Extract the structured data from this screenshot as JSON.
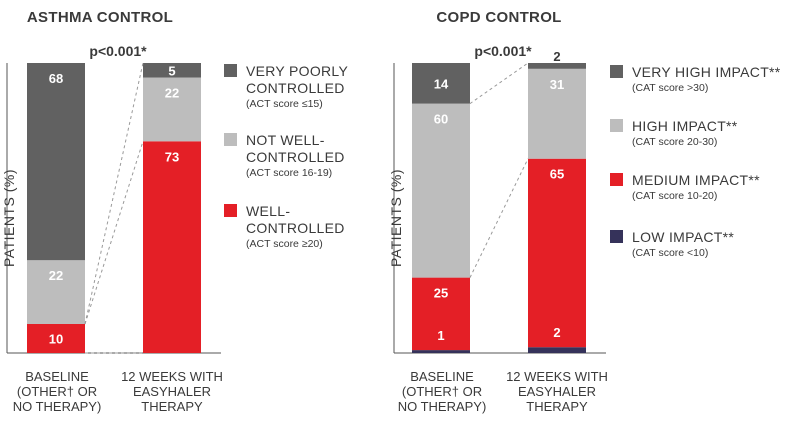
{
  "chart_data": [
    {
      "type": "bar",
      "stacked": true,
      "title": "ASTHMA CONTROL",
      "ylabel": "PATIENTS (%)",
      "annotation": "p<0.001*",
      "categories": [
        [
          "BASELINE",
          "(OTHER† OR",
          "NO THERAPY)"
        ],
        [
          "12 WEEKS WITH",
          "EASYHALER",
          "THERAPY"
        ]
      ],
      "series": [
        {
          "name": "WELL-CONTROLLED",
          "legend_lines": [
            "WELL-",
            "CONTROLLED"
          ],
          "note": "(ACT score ≥20)",
          "color": "#e41f26",
          "values": [
            10,
            73
          ]
        },
        {
          "name": "NOT WELL-CONTROLLED",
          "legend_lines": [
            "NOT WELL-",
            "CONTROLLED"
          ],
          "note": "(ACT score 16-19)",
          "color": "#bdbdbd",
          "values": [
            22,
            22
          ]
        },
        {
          "name": "VERY POORLY CONTROLLED",
          "legend_lines": [
            "VERY POORLY",
            "CONTROLLED"
          ],
          "note": "(ACT score ≤15)",
          "color": "#616161",
          "values": [
            68,
            5
          ]
        }
      ],
      "ylim": [
        0,
        100
      ]
    },
    {
      "type": "bar",
      "stacked": true,
      "title": "COPD CONTROL",
      "ylabel": "PATIENTS (%)",
      "annotation": "p<0.001*",
      "categories": [
        [
          "BASELINE",
          "(OTHER† OR",
          "NO THERAPY)"
        ],
        [
          "12 WEEKS WITH",
          "EASYHALER",
          "THERAPY"
        ]
      ],
      "series": [
        {
          "name": "LOW IMPACT**",
          "legend_lines": [
            "LOW IMPACT**"
          ],
          "note": "(CAT score <10)",
          "color": "#35325a",
          "values": [
            1,
            2
          ]
        },
        {
          "name": "MEDIUM IMPACT**",
          "legend_lines": [
            "MEDIUM IMPACT**"
          ],
          "note": "(CAT score 10-20)",
          "color": "#e41f26",
          "values": [
            25,
            65
          ]
        },
        {
          "name": "HIGH IMPACT**",
          "legend_lines": [
            "HIGH IMPACT**"
          ],
          "note": "(CAT score 20-30)",
          "color": "#bdbdbd",
          "values": [
            60,
            31
          ]
        },
        {
          "name": "VERY HIGH IMPACT**",
          "legend_lines": [
            "VERY HIGH IMPACT**"
          ],
          "note": "(CAT score >30)",
          "color": "#616161",
          "values": [
            14,
            2
          ]
        }
      ],
      "ylim": [
        0,
        100
      ]
    }
  ]
}
